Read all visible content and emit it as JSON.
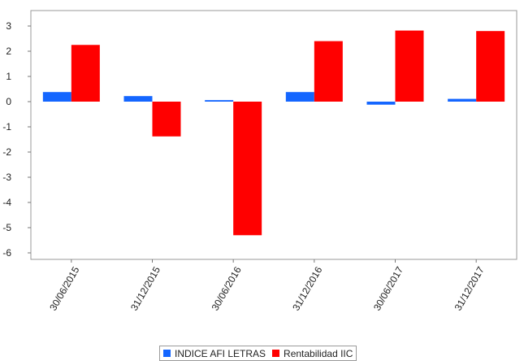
{
  "chart_data": {
    "type": "bar",
    "categories": [
      "30/06/2015",
      "31/12/2015",
      "30/06/2016",
      "31/12/2016",
      "30/06/2017",
      "31/12/2017"
    ],
    "series": [
      {
        "name": "INDICE AFI LETRAS",
        "color": "#1466ff",
        "values": [
          0.38,
          0.22,
          0.06,
          0.38,
          -0.12,
          0.11
        ]
      },
      {
        "name": "Rentabilidad IIC",
        "color": "#ff0000",
        "values": [
          2.25,
          -1.38,
          -5.3,
          2.4,
          2.82,
          2.8
        ]
      }
    ],
    "yticks": [
      3,
      2,
      1,
      0,
      -1,
      -2,
      -3,
      -4,
      -5,
      -6
    ],
    "ylim": [
      -6.2,
      3.6
    ],
    "grid": false,
    "legend_position": "bottom"
  }
}
